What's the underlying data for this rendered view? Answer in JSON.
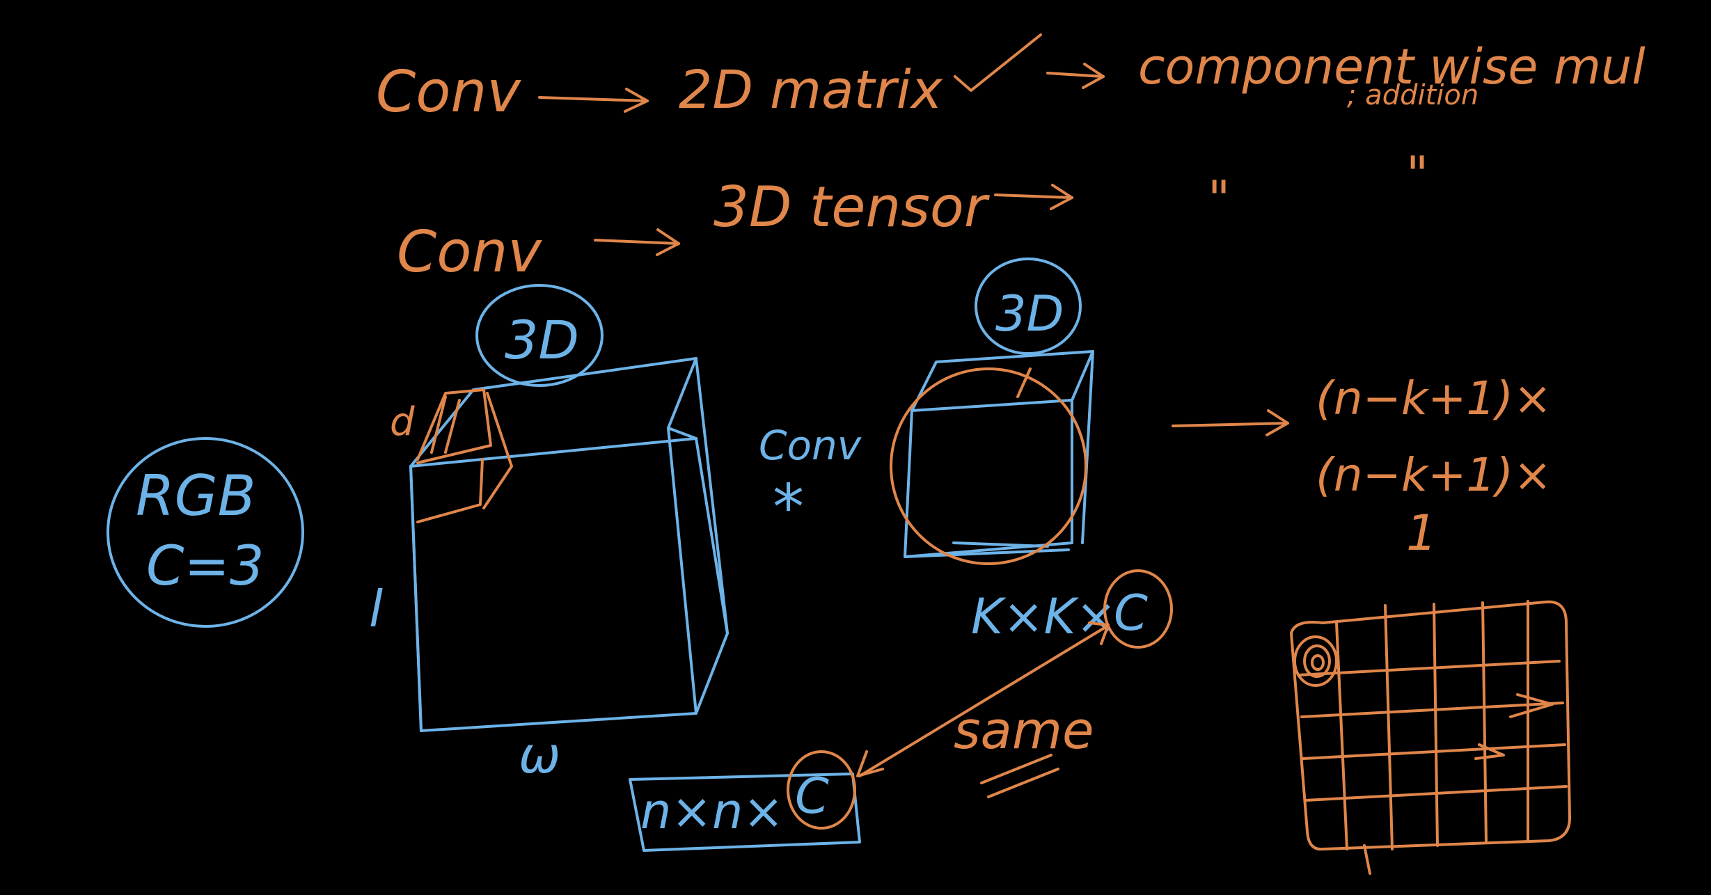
{
  "colors": {
    "orange": "#e0864a",
    "blue": "#6db3e8",
    "background": "#000000"
  },
  "notes": {
    "line1_left": "Conv",
    "line1_mid": "2D matrix",
    "line1_check": "✓",
    "line1_right": "component wise mul",
    "line1_right_sub": "; addition",
    "line2_left": "Conv",
    "line2_mid": "3D tensor",
    "ditto1": "\"",
    "ditto2": "\"",
    "label_3d_left": "3D",
    "label_3d_right": "3D",
    "rgb": "RGB",
    "channels": "C=3",
    "dim_d": "d",
    "dim_l": "l",
    "dim_w": "ω",
    "conv_word": "Conv",
    "conv_star": "*",
    "kernel_dims": "K×K×",
    "kernel_c": "C",
    "input_dims": "n×n×",
    "input_c": "C",
    "same": "same",
    "out_line1": "(n−k+1)×",
    "out_line2": "(n−k+1)×",
    "out_line3": "1"
  }
}
